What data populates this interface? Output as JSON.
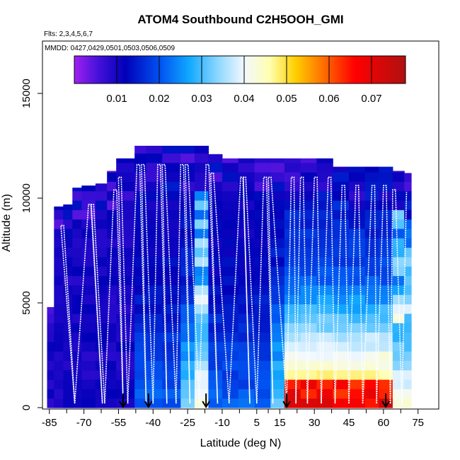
{
  "chart_data": {
    "type": "heatmap",
    "title": "ATOM4 Southbound C2H5OOH_GMI",
    "flights_label": "Flts: 2,3,4,5,6,7",
    "dates_label": "MMDD: 0427,0429,0501,0503,0506,0509",
    "xlabel": "Latitude (deg N)",
    "ylabel": "Altitude (m)",
    "xlim": [
      -88,
      84
    ],
    "ylim": [
      0,
      17500
    ],
    "x_ticks": [
      -85,
      -70,
      -55,
      -40,
      -25,
      -10,
      5,
      15,
      30,
      45,
      60,
      75
    ],
    "y_ticks": [
      0,
      5000,
      10000,
      15000
    ],
    "colorbar": {
      "min": 0.0,
      "max": 0.078,
      "ticks": [
        0.01,
        0.02,
        0.03,
        0.04,
        0.05,
        0.06,
        0.07
      ],
      "tick_labels": [
        "0.01",
        "0.02",
        "0.03",
        "0.04",
        "0.05",
        "0.06",
        "0.07"
      ],
      "stops": [
        {
          "v": 0.0,
          "c": "#a020f0"
        },
        {
          "v": 0.006,
          "c": "#4010d8"
        },
        {
          "v": 0.012,
          "c": "#0000b8"
        },
        {
          "v": 0.02,
          "c": "#0050f0"
        },
        {
          "v": 0.027,
          "c": "#10a8ff"
        },
        {
          "v": 0.034,
          "c": "#90d8ff"
        },
        {
          "v": 0.04,
          "c": "#f2f8ff"
        },
        {
          "v": 0.046,
          "c": "#ffffb0"
        },
        {
          "v": 0.052,
          "c": "#ffd000"
        },
        {
          "v": 0.058,
          "c": "#ff7800"
        },
        {
          "v": 0.066,
          "c": "#ff0000"
        },
        {
          "v": 0.078,
          "c": "#b01010"
        }
      ]
    },
    "columns": [
      {
        "x0": -86,
        "x1": -83,
        "top": 4800,
        "tint": 0
      },
      {
        "x0": -83,
        "x1": -79,
        "top": 9600,
        "tint": 0
      },
      {
        "x0": -79,
        "x1": -75,
        "top": 9700,
        "tint": 0
      },
      {
        "x0": -75,
        "x1": -71,
        "top": 10500,
        "tint": 0
      },
      {
        "x0": -71,
        "x1": -65,
        "top": 10600,
        "tint": 0
      },
      {
        "x0": -65,
        "x1": -60,
        "top": 10700,
        "tint": 0
      },
      {
        "x0": -60,
        "x1": -56,
        "top": 11300,
        "tint": 0
      },
      {
        "x0": -56,
        "x1": -48,
        "top": 11900,
        "tint": 0
      },
      {
        "x0": -48,
        "x1": -43,
        "top": 12500,
        "tint": 1
      },
      {
        "x0": -43,
        "x1": -36,
        "top": 12500,
        "tint": 1
      },
      {
        "x0": -36,
        "x1": -28,
        "top": 12500,
        "tint": 1
      },
      {
        "x0": -28,
        "x1": -22,
        "top": 12500,
        "tint": 2
      },
      {
        "x0": -22,
        "x1": -16,
        "top": 12500,
        "tint": 3
      },
      {
        "x0": -16,
        "x1": -10,
        "top": 12100,
        "tint": 1
      },
      {
        "x0": -10,
        "x1": -3,
        "top": 11900,
        "tint": 1
      },
      {
        "x0": -3,
        "x1": 4,
        "top": 11900,
        "tint": 1
      },
      {
        "x0": 4,
        "x1": 11,
        "top": 11900,
        "tint": 1
      },
      {
        "x0": 11,
        "x1": 17,
        "top": 11900,
        "tint": 2
      },
      {
        "x0": 17,
        "x1": 24,
        "top": 11900,
        "tint": 4
      },
      {
        "x0": 24,
        "x1": 31,
        "top": 11900,
        "tint": 4
      },
      {
        "x0": 31,
        "x1": 38,
        "top": 11900,
        "tint": 4
      },
      {
        "x0": 38,
        "x1": 45,
        "top": 11500,
        "tint": 4
      },
      {
        "x0": 45,
        "x1": 52,
        "top": 11500,
        "tint": 4
      },
      {
        "x0": 52,
        "x1": 58,
        "top": 11500,
        "tint": 4
      },
      {
        "x0": 58,
        "x1": 64,
        "top": 11500,
        "tint": 4
      },
      {
        "x0": 64,
        "x1": 69,
        "top": 11300,
        "tint": 3
      },
      {
        "x0": 69,
        "x1": 72,
        "top": 11200,
        "tint": 3
      }
    ],
    "profiles": [
      {
        "x_bottom": -74,
        "x_top": -80
      },
      {
        "x_bottom": -74,
        "x_top": -68
      },
      {
        "x_bottom": -62,
        "x_top": -67
      },
      {
        "x_bottom": -61,
        "x_top": -57
      },
      {
        "x_bottom": -53,
        "x_top": -55
      },
      {
        "x_bottom": -51,
        "x_top": -47
      },
      {
        "x_bottom": -43,
        "x_top": -45
      },
      {
        "x_bottom": -40,
        "x_top": -38
      },
      {
        "x_bottom": -34,
        "x_top": -36
      },
      {
        "x_bottom": -30,
        "x_top": -28
      },
      {
        "x_bottom": -24,
        "x_top": -26
      },
      {
        "x_bottom": -20,
        "x_top": -17
      },
      {
        "x_bottom": -12,
        "x_top": -15
      },
      {
        "x_bottom": -7,
        "x_top": -2
      },
      {
        "x_bottom": 2,
        "x_top": -1
      },
      {
        "x_bottom": 5,
        "x_top": 8
      },
      {
        "x_bottom": 12,
        "x_top": 10
      },
      {
        "x_bottom": 18,
        "x_top": 20
      },
      {
        "x_bottom": 22,
        "x_top": 24
      },
      {
        "x_bottom": 27,
        "x_top": 30
      },
      {
        "x_bottom": 33,
        "x_top": 36
      },
      {
        "x_bottom": 39,
        "x_top": 42
      },
      {
        "x_bottom": 45,
        "x_top": 48
      },
      {
        "x_bottom": 51,
        "x_top": 55
      },
      {
        "x_bottom": 57,
        "x_top": 60
      },
      {
        "x_bottom": 63,
        "x_top": 64
      },
      {
        "x_bottom": 68,
        "x_top": 70
      }
    ],
    "arrows_lat": [
      -53,
      -42,
      -17,
      18,
      61
    ]
  }
}
